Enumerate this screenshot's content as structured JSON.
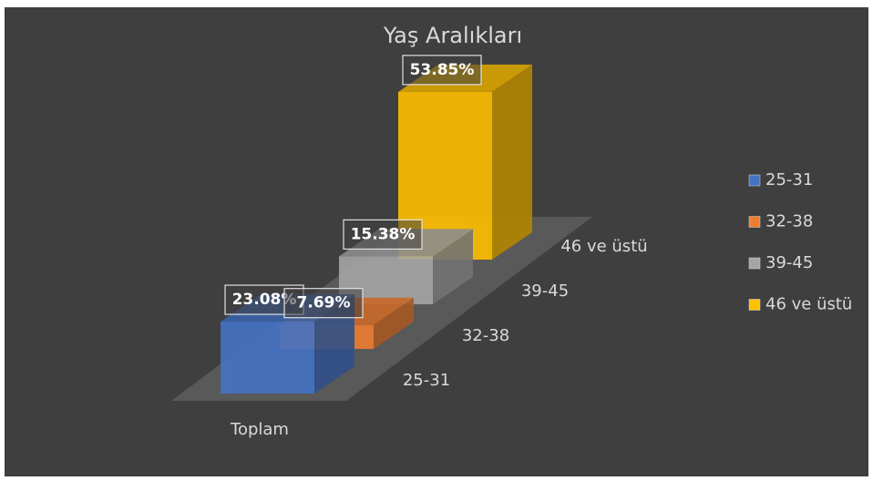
{
  "chart_data": {
    "type": "bar",
    "title": "Yaş Aralıkları",
    "categories": [
      "Toplam"
    ],
    "series": [
      {
        "name": "25-31",
        "color": "#4472c4",
        "values": [
          23.08
        ],
        "value_labels": [
          "23.08%"
        ]
      },
      {
        "name": "32-38",
        "color": "#ed7d31",
        "values": [
          7.69
        ],
        "value_labels": [
          "7.69%"
        ]
      },
      {
        "name": "39-45",
        "color": "#a5a5a5",
        "values": [
          15.38
        ],
        "value_labels": [
          "15.38%"
        ]
      },
      {
        "name": "46 ve üstü",
        "color": "#ffc000",
        "values": [
          53.85
        ],
        "value_labels": [
          "53.85%"
        ]
      }
    ],
    "legend": "right"
  }
}
